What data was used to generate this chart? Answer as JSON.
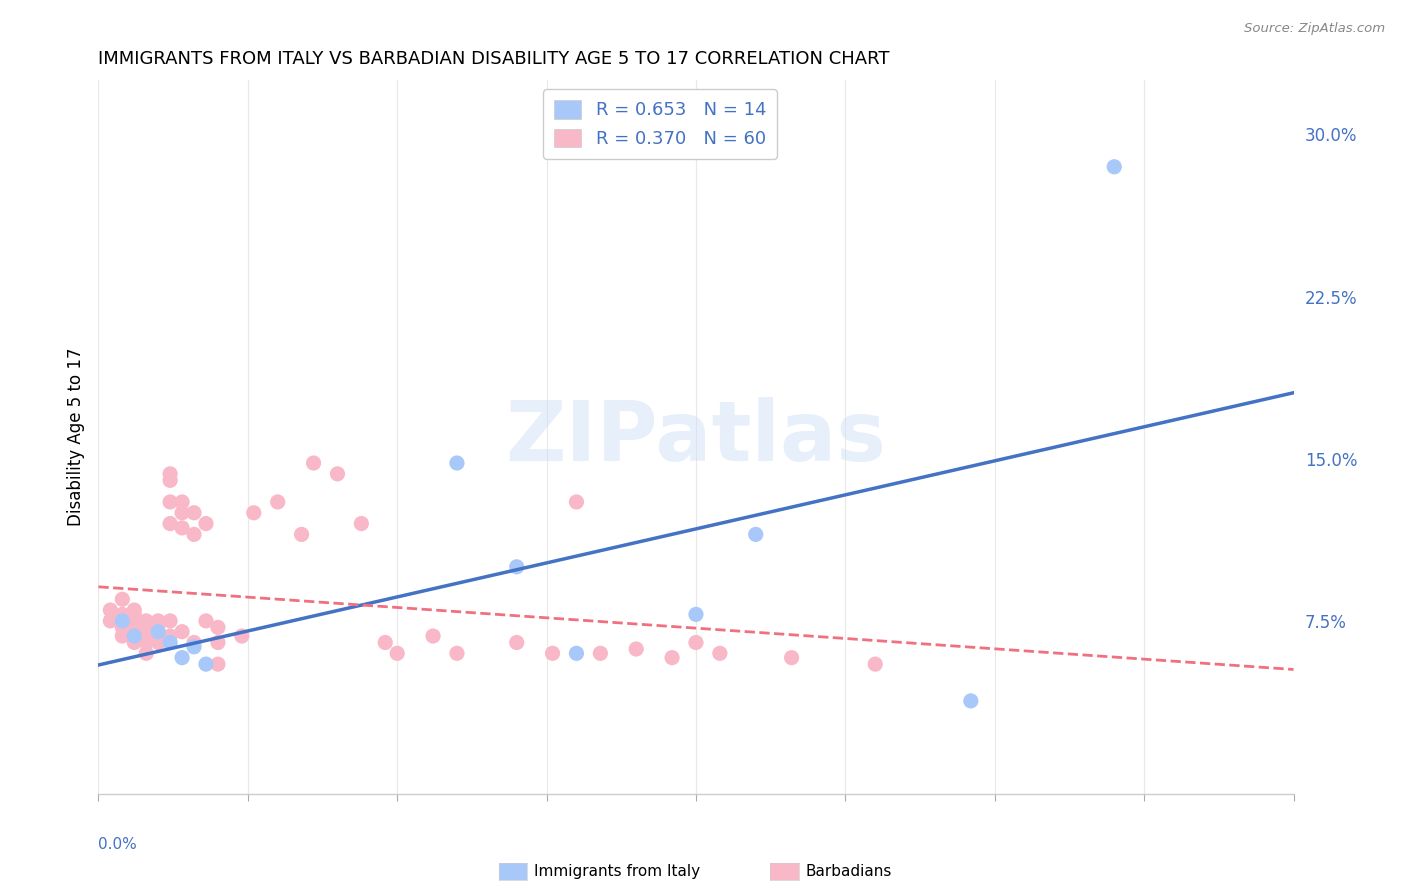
{
  "title": "IMMIGRANTS FROM ITALY VS BARBADIAN DISABILITY AGE 5 TO 17 CORRELATION CHART",
  "source": "Source: ZipAtlas.com",
  "ylabel": "Disability Age 5 to 17",
  "legend_r_italy": "R = 0.653",
  "legend_n_italy": "N = 14",
  "legend_r_barbadian": "R = 0.370",
  "legend_n_barbadian": "N = 60",
  "italy_fill_color": "#a8c8fa",
  "barbadian_fill_color": "#f9b8c8",
  "italy_line_color": "#4472c4",
  "barbadian_line_color": "#f07080",
  "right_ytick_vals": [
    0.075,
    0.15,
    0.225,
    0.3
  ],
  "right_yticklabels": [
    "7.5%",
    "15.0%",
    "22.5%",
    "30.0%"
  ],
  "xlim": [
    0.0,
    0.1
  ],
  "ylim": [
    -0.005,
    0.325
  ],
  "italy_x": [
    0.002,
    0.003,
    0.005,
    0.006,
    0.007,
    0.008,
    0.009,
    0.03,
    0.035,
    0.04,
    0.05,
    0.055,
    0.073,
    0.085
  ],
  "italy_y": [
    0.075,
    0.068,
    0.07,
    0.065,
    0.058,
    0.063,
    0.055,
    0.148,
    0.1,
    0.06,
    0.078,
    0.115,
    0.038,
    0.285
  ],
  "barbadian_x": [
    0.001,
    0.001,
    0.002,
    0.002,
    0.002,
    0.002,
    0.003,
    0.003,
    0.003,
    0.003,
    0.003,
    0.003,
    0.004,
    0.004,
    0.004,
    0.004,
    0.004,
    0.005,
    0.005,
    0.005,
    0.005,
    0.006,
    0.006,
    0.006,
    0.006,
    0.006,
    0.006,
    0.007,
    0.007,
    0.007,
    0.007,
    0.008,
    0.008,
    0.008,
    0.009,
    0.009,
    0.01,
    0.01,
    0.01,
    0.012,
    0.013,
    0.015,
    0.017,
    0.018,
    0.02,
    0.022,
    0.024,
    0.025,
    0.028,
    0.03,
    0.035,
    0.038,
    0.04,
    0.042,
    0.045,
    0.048,
    0.05,
    0.052,
    0.058,
    0.065
  ],
  "barbadian_y": [
    0.075,
    0.08,
    0.072,
    0.068,
    0.078,
    0.085,
    0.07,
    0.073,
    0.065,
    0.078,
    0.072,
    0.08,
    0.068,
    0.075,
    0.06,
    0.065,
    0.07,
    0.075,
    0.073,
    0.065,
    0.068,
    0.14,
    0.143,
    0.13,
    0.12,
    0.075,
    0.068,
    0.125,
    0.118,
    0.13,
    0.07,
    0.065,
    0.125,
    0.115,
    0.075,
    0.12,
    0.055,
    0.065,
    0.072,
    0.068,
    0.125,
    0.13,
    0.115,
    0.148,
    0.143,
    0.12,
    0.065,
    0.06,
    0.068,
    0.06,
    0.065,
    0.06,
    0.13,
    0.06,
    0.062,
    0.058,
    0.065,
    0.06,
    0.058,
    0.055
  ],
  "bottom_legend_italy": "Immigrants from Italy",
  "bottom_legend_barbadian": "Barbadians",
  "watermark": "ZIPatlas",
  "watermark_color": "#d0e0f8",
  "background_color": "#ffffff",
  "grid_color": "#e8e8e8",
  "title_fontsize": 13,
  "axis_label_color": "#4472c4",
  "marker_size": 120
}
